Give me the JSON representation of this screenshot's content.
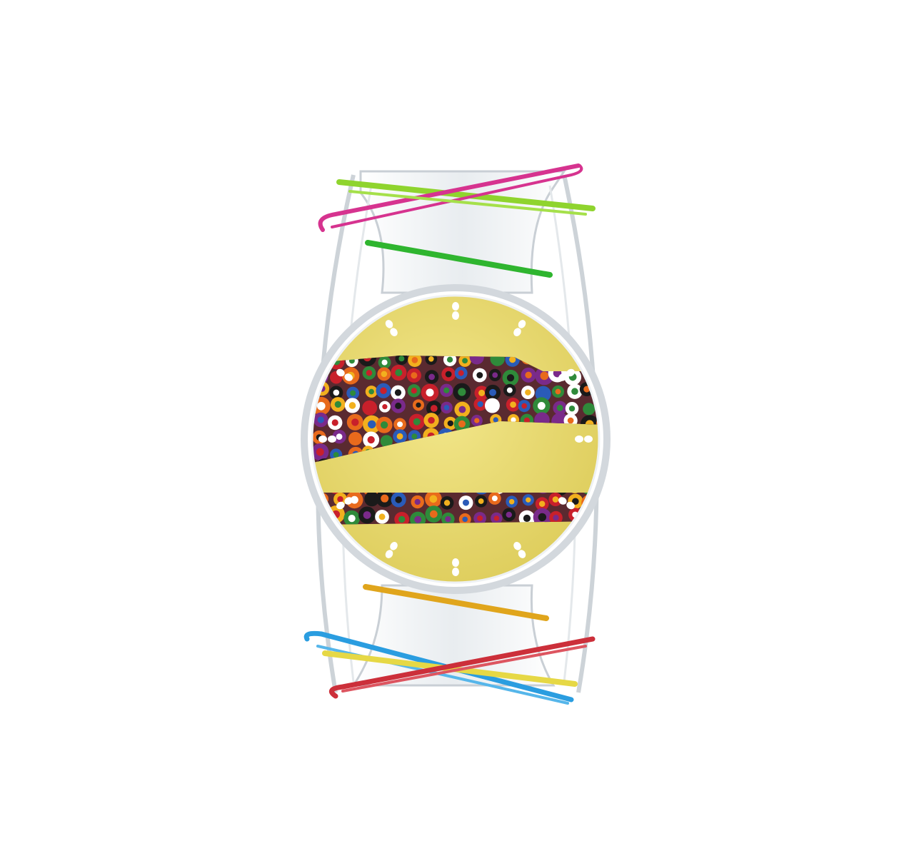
{
  "scene": {
    "subject": "watch-render",
    "background_color": "#ffffff",
    "dial_color": "#e8d96a",
    "case_color": "#d8dde2",
    "band_frame_color": "#e9edf0",
    "wire_colors": {
      "lime": "#8fd42e",
      "magenta": "#d6338f",
      "green": "#2fb52f",
      "orange": "#e0a51c",
      "blue": "#2a9de0",
      "yellow": "#e6d845",
      "red": "#cc2f3a"
    },
    "millefiori_colors": [
      "#c8202b",
      "#f2b01e",
      "#2a5bb8",
      "#2f8a3a",
      "#ffffff",
      "#7a2a8a",
      "#e86a1c",
      "#1a1a1a"
    ],
    "hour_markers": 12
  }
}
